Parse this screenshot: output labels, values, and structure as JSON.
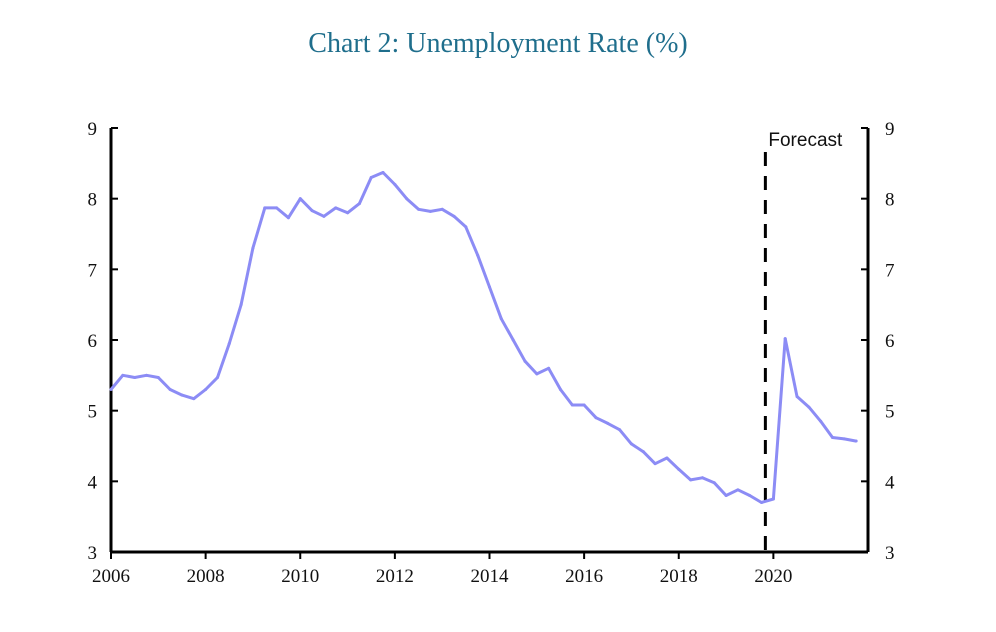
{
  "chart_data": {
    "type": "line",
    "title": "Chart 2: Unemployment Rate (%)",
    "xlabel": "",
    "ylabel": "",
    "xlim": [
      2006,
      2022
    ],
    "ylim": [
      3,
      9
    ],
    "xticks": [
      "2006",
      "2008",
      "2010",
      "2012",
      "2014",
      "2016",
      "2018",
      "2020"
    ],
    "yticks": [
      "3",
      "4",
      "5",
      "6",
      "7",
      "8",
      "9"
    ],
    "forecast_start": 2020,
    "annotation": "Forecast",
    "colors": {
      "line": "#8c8cf5",
      "axis": "#000000",
      "title": "#1f6e8c"
    },
    "series": [
      {
        "x": [
          2006.0,
          2006.25,
          2006.5,
          2006.75,
          2007.0,
          2007.25,
          2007.5,
          2007.75,
          2008.0,
          2008.25,
          2008.5,
          2008.75,
          2009.0,
          2009.25,
          2009.5,
          2009.75,
          2010.0,
          2010.25,
          2010.5,
          2010.75,
          2011.0,
          2011.25,
          2011.5,
          2011.75,
          2012.0,
          2012.25,
          2012.5,
          2012.75,
          2013.0,
          2013.25,
          2013.5,
          2013.75,
          2014.0,
          2014.25,
          2014.5,
          2014.75,
          2015.0,
          2015.25,
          2015.5,
          2015.75,
          2016.0,
          2016.25,
          2016.5,
          2016.75,
          2017.0,
          2017.25,
          2017.5,
          2017.75,
          2018.0,
          2018.25,
          2018.5,
          2018.75,
          2019.0,
          2019.25,
          2019.5,
          2019.75,
          2020.0,
          2020.25,
          2020.5,
          2020.75,
          2021.0,
          2021.25,
          2021.5,
          2021.75
        ],
        "values": [
          5.3,
          5.5,
          5.47,
          5.5,
          5.47,
          5.3,
          5.22,
          5.17,
          5.3,
          5.47,
          5.95,
          6.5,
          7.3,
          7.87,
          7.87,
          7.73,
          8.0,
          7.83,
          7.75,
          7.87,
          7.8,
          7.93,
          8.3,
          8.37,
          8.2,
          8.0,
          7.85,
          7.82,
          7.85,
          7.75,
          7.6,
          7.2,
          6.75,
          6.3,
          6.0,
          5.7,
          5.52,
          5.6,
          5.3,
          5.08,
          5.08,
          4.9,
          4.82,
          4.73,
          4.53,
          4.42,
          4.25,
          4.33,
          4.17,
          4.02,
          4.05,
          3.98,
          3.8,
          3.88,
          3.8,
          3.7,
          3.75,
          6.02,
          5.2,
          5.05,
          4.85,
          4.62,
          4.6,
          4.57
        ]
      }
    ]
  }
}
